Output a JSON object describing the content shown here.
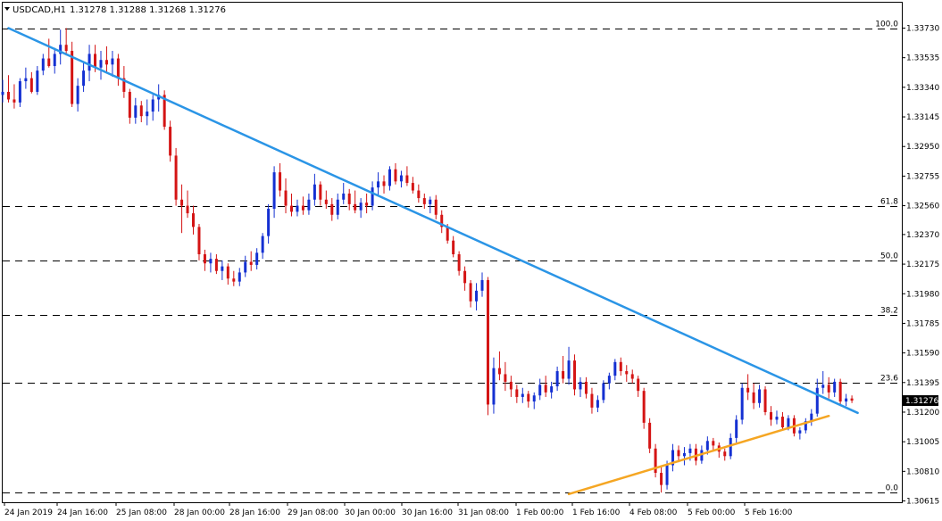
{
  "header": {
    "title": "USDCAD,H1",
    "ohlc": "1.31278 1.31288 1.31268 1.31276"
  },
  "chart_data": {
    "type": "candlestick",
    "symbol": "USDCAD",
    "timeframe": "H1",
    "ylim": [
      1.30615,
      1.33825
    ],
    "y_ticks": [
      {
        "value": 1.3373,
        "label": "1.33730"
      },
      {
        "value": 1.33535,
        "label": "1.33535"
      },
      {
        "value": 1.3334,
        "label": "1.33340"
      },
      {
        "value": 1.33145,
        "label": "1.33145"
      },
      {
        "value": 1.3295,
        "label": "1.32950"
      },
      {
        "value": 1.32755,
        "label": "1.32755"
      },
      {
        "value": 1.3256,
        "label": "1.32560"
      },
      {
        "value": 1.3237,
        "label": "1.32370"
      },
      {
        "value": 1.32175,
        "label": "1.32175"
      },
      {
        "value": 1.3198,
        "label": "1.31980"
      },
      {
        "value": 1.31785,
        "label": "1.31785"
      },
      {
        "value": 1.3159,
        "label": "1.31590"
      },
      {
        "value": 1.31395,
        "label": "1.31395"
      },
      {
        "value": 1.312,
        "label": "1.31200"
      },
      {
        "value": 1.31005,
        "label": "1.31005"
      },
      {
        "value": 1.3081,
        "label": "1.30810"
      },
      {
        "value": 1.30615,
        "label": "1.30615"
      }
    ],
    "x_ticks": [
      "24 Jan 2019",
      "24 Jan 16:00",
      "25 Jan 08:00",
      "28 Jan 00:00",
      "28 Jan 16:00",
      "29 Jan 08:00",
      "30 Jan 00:00",
      "30 Jan 16:00",
      "31 Jan 08:00",
      "1 Feb 00:00",
      "1 Feb 16:00",
      "4 Feb 08:00",
      "5 Feb 00:00",
      "5 Feb 16:00"
    ],
    "current_price": {
      "value": 1.31276,
      "label": "1.31276"
    },
    "fibonacci_levels": [
      {
        "label": "100.0",
        "value": 1.3373
      },
      {
        "label": "61.8",
        "value": 1.3256
      },
      {
        "label": "50.0",
        "value": 1.322
      },
      {
        "label": "38.2",
        "value": 1.31838
      },
      {
        "label": "23.6",
        "value": 1.31395
      },
      {
        "label": "0.0",
        "value": 1.3067
      }
    ],
    "trendlines": [
      {
        "name": "resistance",
        "color": "#2b95e6",
        "start": [
          1,
          1.3373
        ],
        "end": [
          148,
          1.31195
        ]
      },
      {
        "name": "support",
        "color": "#f5a623",
        "start": [
          98,
          1.3066
        ],
        "end": [
          143,
          1.31175
        ]
      }
    ],
    "colors": {
      "bull": "#1430d2",
      "bear": "#d41414",
      "grid": "#000000"
    },
    "candles": [
      [
        1.3329,
        1.3339,
        1.3324,
        1.3331
      ],
      [
        1.3331,
        1.3342,
        1.3324,
        1.3326
      ],
      [
        1.3326,
        1.3336,
        1.332,
        1.3324
      ],
      [
        1.3324,
        1.334,
        1.3321,
        1.3338
      ],
      [
        1.3338,
        1.3347,
        1.3333,
        1.334
      ],
      [
        1.334,
        1.3344,
        1.333,
        1.3331
      ],
      [
        1.3331,
        1.3348,
        1.3329,
        1.3345
      ],
      [
        1.3345,
        1.3356,
        1.3342,
        1.3353
      ],
      [
        1.3353,
        1.3366,
        1.3347,
        1.3348
      ],
      [
        1.3348,
        1.336,
        1.3343,
        1.3356
      ],
      [
        1.3356,
        1.3372,
        1.3349,
        1.3362
      ],
      [
        1.3362,
        1.3373,
        1.3355,
        1.3358
      ],
      [
        1.3358,
        1.3364,
        1.3321,
        1.3323
      ],
      [
        1.3323,
        1.334,
        1.3318,
        1.3335
      ],
      [
        1.3335,
        1.3351,
        1.3331,
        1.3345
      ],
      [
        1.3345,
        1.3362,
        1.3338,
        1.3356
      ],
      [
        1.3356,
        1.3362,
        1.3344,
        1.3347
      ],
      [
        1.3347,
        1.3358,
        1.3339,
        1.3352
      ],
      [
        1.3352,
        1.3361,
        1.3344,
        1.3349
      ],
      [
        1.3349,
        1.3358,
        1.3341,
        1.3353
      ],
      [
        1.3353,
        1.3356,
        1.3335,
        1.334
      ],
      [
        1.334,
        1.3348,
        1.3327,
        1.3331
      ],
      [
        1.3331,
        1.3333,
        1.331,
        1.3314
      ],
      [
        1.3314,
        1.3327,
        1.331,
        1.3322
      ],
      [
        1.3322,
        1.3325,
        1.3311,
        1.3315
      ],
      [
        1.3315,
        1.3326,
        1.3309,
        1.3318
      ],
      [
        1.3318,
        1.3329,
        1.3312,
        1.3326
      ],
      [
        1.3326,
        1.3336,
        1.3318,
        1.3329
      ],
      [
        1.3329,
        1.3332,
        1.3306,
        1.3308
      ],
      [
        1.3308,
        1.3312,
        1.3285,
        1.3289
      ],
      [
        1.3289,
        1.3294,
        1.3256,
        1.326
      ],
      [
        1.326,
        1.327,
        1.3238,
        1.3256
      ],
      [
        1.3256,
        1.3266,
        1.3248,
        1.3251
      ],
      [
        1.3251,
        1.3256,
        1.3237,
        1.3242
      ],
      [
        1.3242,
        1.3244,
        1.322,
        1.3224
      ],
      [
        1.3224,
        1.3227,
        1.3213,
        1.3218
      ],
      [
        1.3218,
        1.3225,
        1.3212,
        1.3221
      ],
      [
        1.3221,
        1.3224,
        1.3211,
        1.3213
      ],
      [
        1.3213,
        1.322,
        1.3207,
        1.3216
      ],
      [
        1.3216,
        1.3218,
        1.3204,
        1.3208
      ],
      [
        1.3208,
        1.3213,
        1.3203,
        1.3206
      ],
      [
        1.3206,
        1.3215,
        1.3203,
        1.3212
      ],
      [
        1.3212,
        1.3223,
        1.3209,
        1.3219
      ],
      [
        1.3219,
        1.3226,
        1.3213,
        1.3217
      ],
      [
        1.3217,
        1.3228,
        1.3214,
        1.3225
      ],
      [
        1.3225,
        1.3238,
        1.3221,
        1.3236
      ],
      [
        1.3236,
        1.3257,
        1.3231,
        1.3254
      ],
      [
        1.3254,
        1.3282,
        1.3248,
        1.3278
      ],
      [
        1.3278,
        1.3284,
        1.3262,
        1.3266
      ],
      [
        1.3266,
        1.3274,
        1.3251,
        1.3256
      ],
      [
        1.3256,
        1.3264,
        1.3249,
        1.3252
      ],
      [
        1.3252,
        1.326,
        1.3249,
        1.3256
      ],
      [
        1.3256,
        1.3262,
        1.325,
        1.3253
      ],
      [
        1.3253,
        1.3264,
        1.325,
        1.326
      ],
      [
        1.326,
        1.3277,
        1.3256,
        1.327
      ],
      [
        1.327,
        1.3272,
        1.3256,
        1.326
      ],
      [
        1.326,
        1.3266,
        1.3254,
        1.3257
      ],
      [
        1.3257,
        1.3261,
        1.3246,
        1.325
      ],
      [
        1.325,
        1.3264,
        1.3247,
        1.326
      ],
      [
        1.326,
        1.3271,
        1.3257,
        1.3264
      ],
      [
        1.3264,
        1.3267,
        1.3253,
        1.3257
      ],
      [
        1.3257,
        1.3266,
        1.3251,
        1.3253
      ],
      [
        1.3253,
        1.3261,
        1.3248,
        1.3258
      ],
      [
        1.3258,
        1.3264,
        1.3251,
        1.3256
      ],
      [
        1.3256,
        1.3272,
        1.3253,
        1.3268
      ],
      [
        1.3268,
        1.3278,
        1.3263,
        1.3272
      ],
      [
        1.3272,
        1.3276,
        1.3264,
        1.3269
      ],
      [
        1.3269,
        1.3282,
        1.3266,
        1.328
      ],
      [
        1.328,
        1.3284,
        1.327,
        1.3272
      ],
      [
        1.3272,
        1.3279,
        1.3268,
        1.3276
      ],
      [
        1.3276,
        1.3282,
        1.3269,
        1.3271
      ],
      [
        1.3271,
        1.3275,
        1.3264,
        1.3266
      ],
      [
        1.3266,
        1.327,
        1.3258,
        1.3261
      ],
      [
        1.3261,
        1.3264,
        1.3254,
        1.3257
      ],
      [
        1.3257,
        1.3262,
        1.3251,
        1.326
      ],
      [
        1.326,
        1.3263,
        1.3247,
        1.325
      ],
      [
        1.325,
        1.3253,
        1.3238,
        1.3242
      ],
      [
        1.3242,
        1.3244,
        1.3231,
        1.3233
      ],
      [
        1.3233,
        1.3236,
        1.3222,
        1.3224
      ],
      [
        1.3224,
        1.3226,
        1.321,
        1.3213
      ],
      [
        1.3213,
        1.3216,
        1.32,
        1.3205
      ],
      [
        1.3205,
        1.3207,
        1.3189,
        1.3193
      ],
      [
        1.3193,
        1.3205,
        1.3187,
        1.32
      ],
      [
        1.32,
        1.3212,
        1.3196,
        1.3207
      ],
      [
        1.3207,
        1.3209,
        1.3118,
        1.3125
      ],
      [
        1.3125,
        1.3156,
        1.3119,
        1.3149
      ],
      [
        1.3149,
        1.316,
        1.3141,
        1.3145
      ],
      [
        1.3145,
        1.3153,
        1.3134,
        1.314
      ],
      [
        1.314,
        1.3144,
        1.313,
        1.3135
      ],
      [
        1.3135,
        1.3138,
        1.3126,
        1.313
      ],
      [
        1.313,
        1.3136,
        1.3126,
        1.3132
      ],
      [
        1.3132,
        1.3134,
        1.3123,
        1.3127
      ],
      [
        1.3127,
        1.3133,
        1.3122,
        1.3131
      ],
      [
        1.3131,
        1.3142,
        1.3128,
        1.3138
      ],
      [
        1.3138,
        1.3144,
        1.313,
        1.3133
      ],
      [
        1.3133,
        1.314,
        1.3129,
        1.3137
      ],
      [
        1.3137,
        1.315,
        1.3134,
        1.3147
      ],
      [
        1.3147,
        1.3157,
        1.3139,
        1.3142
      ],
      [
        1.3142,
        1.3163,
        1.3138,
        1.3154
      ],
      [
        1.3154,
        1.3158,
        1.3131,
        1.3135
      ],
      [
        1.3135,
        1.3143,
        1.313,
        1.314
      ],
      [
        1.314,
        1.3143,
        1.3129,
        1.3132
      ],
      [
        1.3132,
        1.3136,
        1.3119,
        1.3123
      ],
      [
        1.3123,
        1.3131,
        1.312,
        1.3128
      ],
      [
        1.3128,
        1.3141,
        1.3126,
        1.3139
      ],
      [
        1.3139,
        1.3146,
        1.3135,
        1.3144
      ],
      [
        1.3144,
        1.3155,
        1.3141,
        1.3153
      ],
      [
        1.3153,
        1.3156,
        1.3144,
        1.3147
      ],
      [
        1.3147,
        1.3151,
        1.314,
        1.3145
      ],
      [
        1.3145,
        1.3148,
        1.3139,
        1.3142
      ],
      [
        1.3142,
        1.3144,
        1.313,
        1.3134
      ],
      [
        1.3134,
        1.3136,
        1.3109,
        1.3113
      ],
      [
        1.3113,
        1.3116,
        1.3093,
        1.3096
      ],
      [
        1.3096,
        1.3099,
        1.3077,
        1.308
      ],
      [
        1.308,
        1.3084,
        1.3067,
        1.3072
      ],
      [
        1.3072,
        1.3088,
        1.3069,
        1.3085
      ],
      [
        1.3085,
        1.3099,
        1.3081,
        1.3095
      ],
      [
        1.3095,
        1.3098,
        1.3087,
        1.3091
      ],
      [
        1.3091,
        1.3097,
        1.3085,
        1.3093
      ],
      [
        1.3093,
        1.3099,
        1.3088,
        1.3096
      ],
      [
        1.3096,
        1.3099,
        1.3085,
        1.3088
      ],
      [
        1.3088,
        1.3098,
        1.3086,
        1.3095
      ],
      [
        1.3095,
        1.3104,
        1.3092,
        1.3101
      ],
      [
        1.3101,
        1.3103,
        1.3094,
        1.3098
      ],
      [
        1.3098,
        1.31,
        1.309,
        1.3094
      ],
      [
        1.3094,
        1.3096,
        1.3088,
        1.3091
      ],
      [
        1.3091,
        1.3106,
        1.3089,
        1.3103
      ],
      [
        1.3103,
        1.3118,
        1.31,
        1.3115
      ],
      [
        1.3115,
        1.3139,
        1.3112,
        1.3136
      ],
      [
        1.3136,
        1.3145,
        1.3128,
        1.3133
      ],
      [
        1.3133,
        1.3139,
        1.3122,
        1.3126
      ],
      [
        1.3126,
        1.3138,
        1.3123,
        1.3135
      ],
      [
        1.3135,
        1.3137,
        1.3118,
        1.312
      ],
      [
        1.312,
        1.3124,
        1.3111,
        1.3115
      ],
      [
        1.3115,
        1.3121,
        1.3112,
        1.3117
      ],
      [
        1.3117,
        1.312,
        1.3108,
        1.311
      ],
      [
        1.311,
        1.3118,
        1.3108,
        1.3116
      ],
      [
        1.3116,
        1.3118,
        1.3104,
        1.3106
      ],
      [
        1.3106,
        1.311,
        1.3102,
        1.3108
      ],
      [
        1.3108,
        1.3116,
        1.3106,
        1.3114
      ],
      [
        1.3114,
        1.3122,
        1.3111,
        1.3119
      ],
      [
        1.3119,
        1.3142,
        1.3117,
        1.3136
      ],
      [
        1.3136,
        1.3147,
        1.3132,
        1.3138
      ],
      [
        1.3138,
        1.3143,
        1.3129,
        1.3133
      ],
      [
        1.3133,
        1.3142,
        1.313,
        1.314
      ],
      [
        1.314,
        1.3142,
        1.3124,
        1.3127
      ],
      [
        1.3127,
        1.3132,
        1.3124,
        1.3129
      ],
      [
        1.3129,
        1.3131,
        1.3126,
        1.31276
      ]
    ]
  }
}
